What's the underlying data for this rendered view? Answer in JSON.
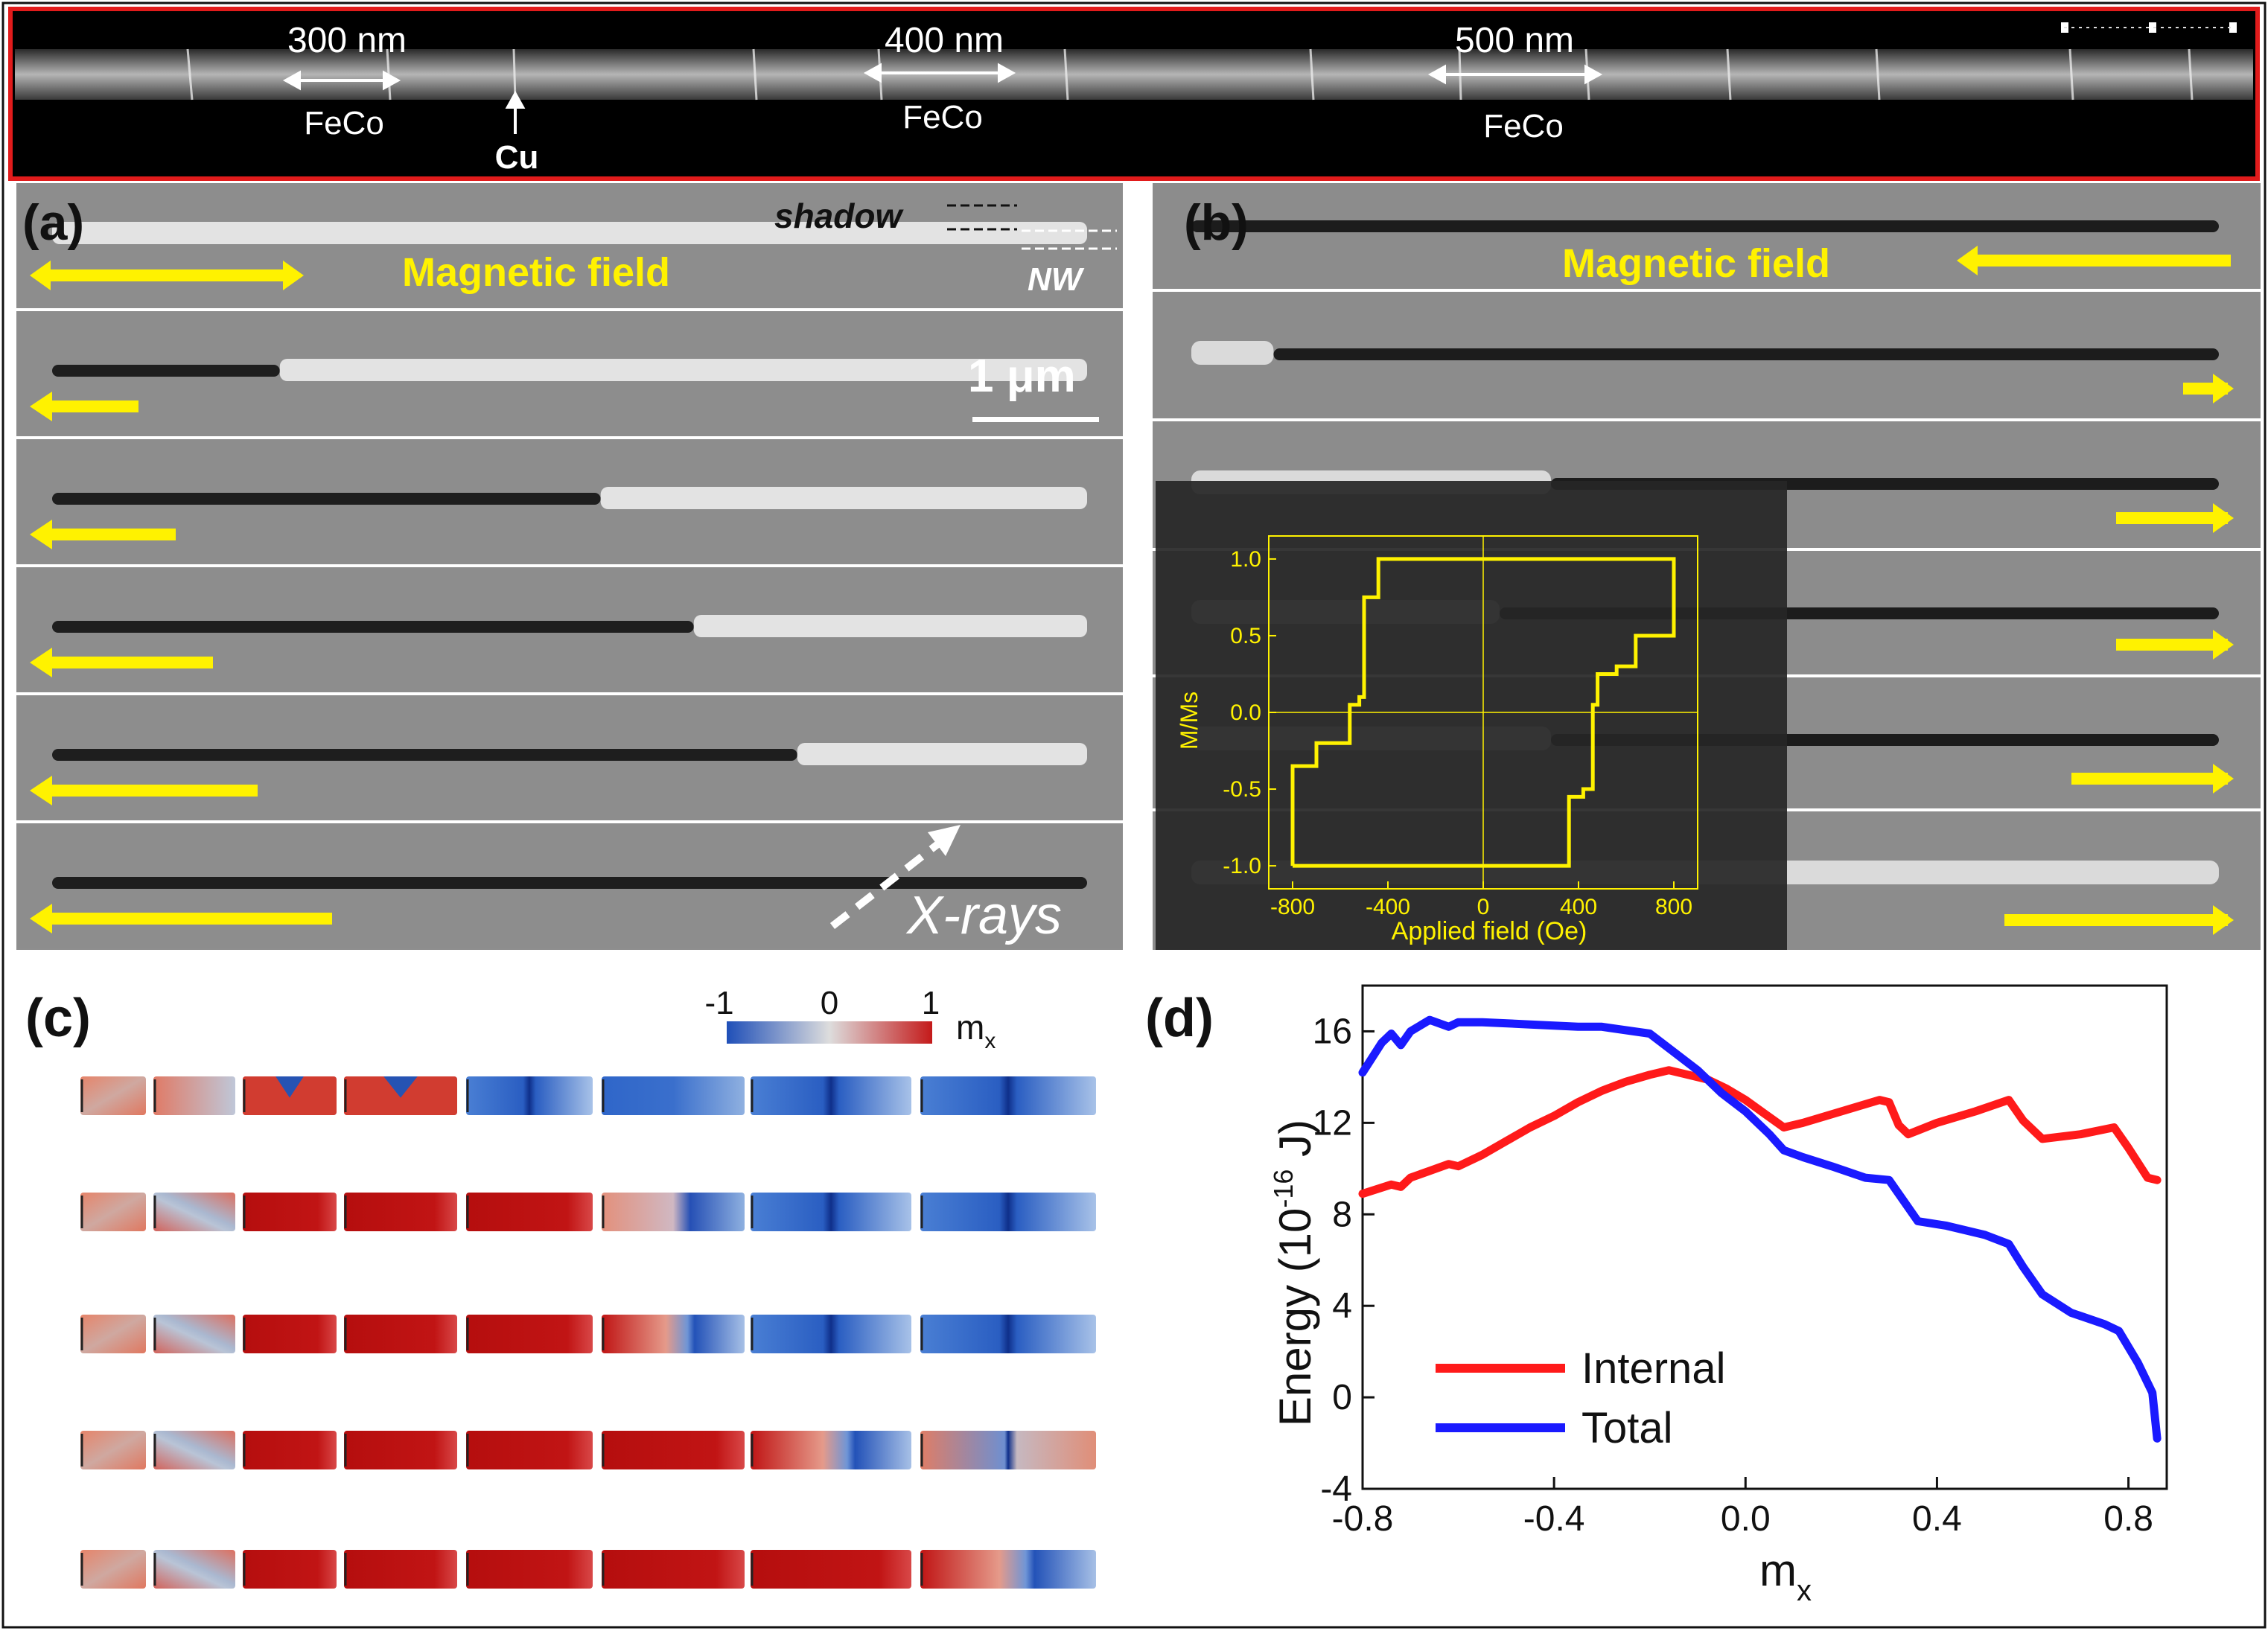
{
  "top_strip": {
    "scale_labels": [
      "300 nm",
      "400 nm",
      "500 nm"
    ],
    "segment_label": "FeCo",
    "cu_label": "Cu",
    "border_color": "#e11b1b"
  },
  "panel_a": {
    "label": "(a)",
    "field_label": "Magnetic field",
    "shadow_label": "shadow",
    "nw_label": "NW",
    "scalebar_label": "1 μm",
    "xray_label": "X-rays",
    "arrow_color": "#fff200",
    "rows": [
      {
        "domain_wall_fraction": 0.0,
        "arrow": "both"
      },
      {
        "domain_wall_fraction": 0.22,
        "arrow": "left"
      },
      {
        "domain_wall_fraction": 0.53,
        "arrow": "left"
      },
      {
        "domain_wall_fraction": 0.62,
        "arrow": "left"
      },
      {
        "domain_wall_fraction": 0.72,
        "arrow": "left"
      },
      {
        "domain_wall_fraction": 1.0,
        "arrow": "left"
      }
    ]
  },
  "panel_b": {
    "label": "(b)",
    "field_label": "Magnetic field",
    "inset": {
      "chart_data": {
        "type": "line",
        "title": "",
        "xlabel": "Applied field (Oe)",
        "ylabel": "M/Ms",
        "xlim": [
          -900,
          900
        ],
        "ylim": [
          -1.15,
          1.15
        ],
        "xticks": [
          -800,
          -400,
          0,
          400,
          800
        ],
        "yticks": [
          1.0,
          0.5,
          0.0,
          -0.5,
          -1.0
        ],
        "xtick_labels": [
          "-800",
          "-400",
          "0",
          "400",
          "800"
        ],
        "ytick_labels": [
          "1.0",
          "0.5",
          "0.0",
          "-0.5",
          "-1.0"
        ],
        "color": "#fff200",
        "series": [
          {
            "name": "hysteresis",
            "x": [
              -800,
              -800,
              -700,
              -700,
              -560,
              -560,
              -520,
              -520,
              -500,
              -500,
              -440,
              -440,
              -360,
              -360,
              800,
              800,
              640,
              640,
              560,
              560,
              480,
              480,
              460,
              460,
              420,
              420,
              360,
              360,
              -800
            ],
            "y": [
              -1.0,
              -0.35,
              -0.35,
              -0.2,
              -0.2,
              0.05,
              0.05,
              0.1,
              0.1,
              0.75,
              0.75,
              1.0,
              1.0,
              1.0,
              1.0,
              0.5,
              0.5,
              0.3,
              0.3,
              0.25,
              0.25,
              0.05,
              0.05,
              -0.5,
              -0.5,
              -0.55,
              -0.55,
              -1.0,
              -1.0
            ]
          }
        ]
      }
    }
  },
  "panel_c": {
    "label": "(c)",
    "colorbar_ticks": [
      "-1",
      "0",
      "1"
    ],
    "colorbar_label": "m",
    "colorbar_sub": "x",
    "rows": [
      [
        "mix",
        "dw",
        "vortexA",
        "vortexB",
        "blueDW",
        "blue",
        "blueDW",
        "blueDW"
      ],
      [
        "mix",
        "diag",
        "red",
        "red",
        "red",
        "redBlue",
        "blueDW",
        "blueDW"
      ],
      [
        "mix",
        "diag",
        "red",
        "red",
        "red",
        "redFade",
        "blueDW",
        "blueDW"
      ],
      [
        "mix",
        "diag",
        "red",
        "red",
        "red",
        "red",
        "redFade",
        "mixDW"
      ],
      [
        "mix",
        "diag",
        "red",
        "red",
        "red",
        "red",
        "red",
        "redFade"
      ]
    ]
  },
  "panel_d": {
    "label": "(d)",
    "chart_data": {
      "type": "line",
      "title": "",
      "xlabel": "m",
      "xlabel_sub": "x",
      "ylabel": "Energy (10",
      "ylabel_exp": "-16",
      "ylabel_unit": " J)",
      "xlim": [
        -0.8,
        0.88
      ],
      "ylim": [
        -4,
        18
      ],
      "xticks": [
        -0.8,
        -0.4,
        0.0,
        0.4,
        0.8
      ],
      "yticks": [
        -4,
        0,
        4,
        8,
        12,
        16
      ],
      "xtick_labels": [
        "-0.8",
        "-0.4",
        "0.0",
        "0.4",
        "0.8"
      ],
      "ytick_labels": [
        "-4",
        "0",
        "4",
        "8",
        "12",
        "16"
      ],
      "legend_position": "lower-left",
      "series": [
        {
          "name": "Internal",
          "color": "#ff1a1a",
          "x": [
            -0.8,
            -0.74,
            -0.72,
            -0.7,
            -0.66,
            -0.62,
            -0.6,
            -0.55,
            -0.5,
            -0.45,
            -0.4,
            -0.35,
            -0.3,
            -0.25,
            -0.2,
            -0.16,
            -0.12,
            -0.08,
            -0.04,
            0.0,
            0.04,
            0.08,
            0.12,
            0.2,
            0.28,
            0.3,
            0.32,
            0.34,
            0.4,
            0.48,
            0.55,
            0.58,
            0.62,
            0.7,
            0.77,
            0.8,
            0.84,
            0.86
          ],
          "y": [
            8.9,
            9.3,
            9.2,
            9.6,
            9.9,
            10.2,
            10.1,
            10.6,
            11.2,
            11.8,
            12.3,
            12.9,
            13.4,
            13.8,
            14.1,
            14.3,
            14.1,
            13.9,
            13.5,
            13.0,
            12.4,
            11.8,
            12.0,
            12.5,
            13.0,
            12.9,
            11.9,
            11.5,
            12.0,
            12.5,
            13.0,
            12.1,
            11.3,
            11.5,
            11.8,
            10.9,
            9.6,
            9.5
          ]
        },
        {
          "name": "Total",
          "color": "#1a1aff",
          "x": [
            -0.8,
            -0.76,
            -0.74,
            -0.72,
            -0.7,
            -0.66,
            -0.62,
            -0.6,
            -0.55,
            -0.45,
            -0.35,
            -0.3,
            -0.2,
            -0.15,
            -0.1,
            -0.05,
            0.0,
            0.05,
            0.08,
            0.12,
            0.18,
            0.25,
            0.3,
            0.33,
            0.36,
            0.42,
            0.5,
            0.55,
            0.58,
            0.62,
            0.68,
            0.75,
            0.78,
            0.82,
            0.85,
            0.86
          ],
          "y": [
            14.2,
            15.5,
            15.9,
            15.4,
            16.0,
            16.5,
            16.2,
            16.4,
            16.4,
            16.3,
            16.2,
            16.2,
            15.9,
            15.1,
            14.3,
            13.3,
            12.5,
            11.5,
            10.8,
            10.5,
            10.1,
            9.6,
            9.5,
            8.6,
            7.7,
            7.5,
            7.1,
            6.7,
            5.7,
            4.5,
            3.7,
            3.2,
            2.9,
            1.5,
            0.2,
            -1.8
          ]
        }
      ]
    }
  }
}
